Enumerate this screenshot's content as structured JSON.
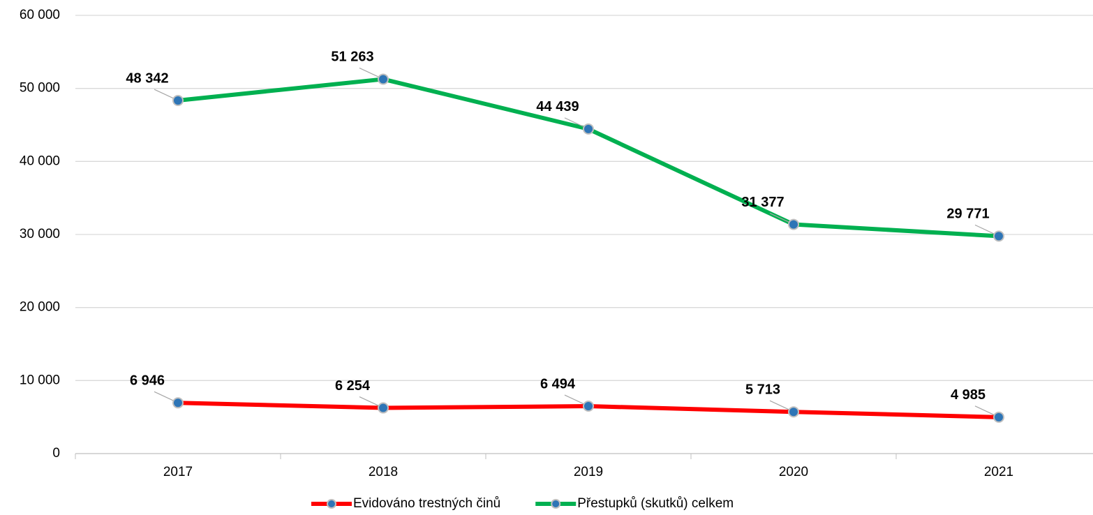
{
  "chart_data": {
    "type": "line",
    "categories": [
      "2017",
      "2018",
      "2019",
      "2020",
      "2021"
    ],
    "series": [
      {
        "name": "Evidováno trestných činů",
        "color": "#ff0000",
        "values": [
          6946,
          6254,
          6494,
          5713,
          4985
        ],
        "value_labels": [
          "6 946",
          "6 254",
          "6 494",
          "5 713",
          "4 985"
        ]
      },
      {
        "name": "Přestupků (skutků) celkem",
        "color": "#00b050",
        "values": [
          48342,
          51263,
          44439,
          31377,
          29771
        ],
        "value_labels": [
          "48 342",
          "51 263",
          "44 439",
          "31 377",
          "29 771"
        ]
      }
    ],
    "marker_color": "#2e75b6",
    "ylim": [
      0,
      60000
    ],
    "yticks": [
      0,
      {
        "value": 10000,
        "label": "10 000"
      },
      {
        "value": 20000,
        "label": "20 000"
      },
      {
        "value": 30000,
        "label": "30 000"
      },
      {
        "value": 40000,
        "label": "40 000"
      },
      {
        "value": 50000,
        "label": "50 000"
      },
      {
        "value": 60000,
        "label": "60 000"
      }
    ],
    "grid": true,
    "legend": "bottom"
  }
}
